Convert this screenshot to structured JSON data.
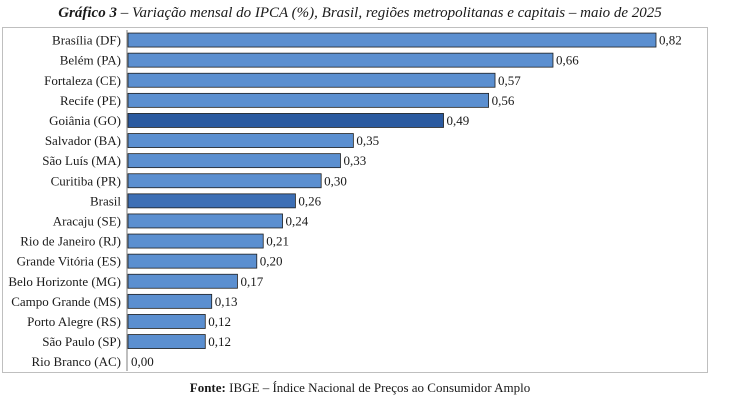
{
  "title": {
    "label": "Gráfico 3",
    "text": " – Variação mensal do IPCA (%), Brasil, regiões metropolitanas e capitais – maio de 2025"
  },
  "source": {
    "label": "Fonte:",
    "text": " IBGE – Índice Nacional de Preços ao Consumidor Amplo"
  },
  "colors": {
    "bar": "#5b8fd0",
    "bar_highlight_goiania": "#2b5aa0",
    "bar_highlight_brasil": "#3d6fb5",
    "bar_stroke": "#1f1f1f"
  },
  "chart_data": {
    "type": "bar",
    "orientation": "horizontal",
    "categories": [
      "Brasília (DF)",
      "Belém (PA)",
      "Fortaleza (CE)",
      "Recife (PE)",
      "Goiânia (GO)",
      "Salvador (BA)",
      "São Luís (MA)",
      "Curitiba (PR)",
      "Brasil",
      "Aracaju (SE)",
      "Rio de Janeiro (RJ)",
      "Grande Vitória (ES)",
      "Belo Horizonte (MG)",
      "Campo Grande (MS)",
      "Porto Alegre (RS)",
      "São Paulo (SP)",
      "Rio Branco (AC)"
    ],
    "values": [
      0.82,
      0.66,
      0.57,
      0.56,
      0.49,
      0.35,
      0.33,
      0.3,
      0.26,
      0.24,
      0.21,
      0.2,
      0.17,
      0.13,
      0.12,
      0.12,
      0.0
    ],
    "value_labels": [
      "0,82",
      "0,66",
      "0,57",
      "0,56",
      "0,49",
      "0,35",
      "0,33",
      "0,30",
      "0,26",
      "0,24",
      "0,21",
      "0,20",
      "0,17",
      "0,13",
      "0,12",
      "0,12",
      "0,00"
    ],
    "highlighted": [
      "Goiânia (GO)",
      "Brasil"
    ],
    "xlim": [
      0,
      0.82
    ],
    "grid": false,
    "legend": "none"
  }
}
